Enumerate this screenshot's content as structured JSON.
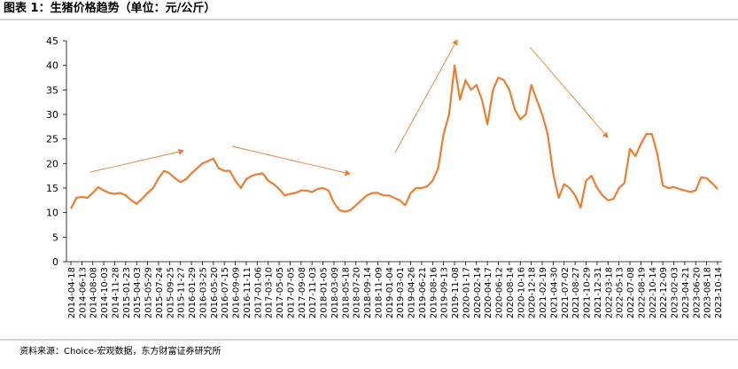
{
  "title": "图表 1：生猪价格趋势（单位：元/公斤）",
  "source": "资料来源：Choice-宏观数据，东方财富证券研究所",
  "chart_data": {
    "type": "line",
    "color": "#ED7D31",
    "categories": [
      "2014-04-18",
      null,
      "2014-06-13",
      null,
      "2014-08-08",
      null,
      "2014-10-03",
      null,
      "2014-11-28",
      null,
      "2015-01-23",
      null,
      "2015-04-03",
      null,
      "2015-05-29",
      null,
      "2015-07-24",
      null,
      "2015-09-25",
      null,
      "2015-11-27",
      null,
      "2016-01-29",
      null,
      "2016-03-25",
      null,
      "2016-05-20",
      null,
      "2016-07-15",
      null,
      "2016-09-09",
      null,
      "2016-11-11",
      null,
      "2017-01-06",
      null,
      "2017-03-10",
      null,
      "2017-05-05",
      null,
      "2017-07-05",
      null,
      "2017-09-08",
      null,
      "2017-11-03",
      null,
      "2018-01-05",
      null,
      "2018-03-09",
      null,
      "2018-05-18",
      null,
      "2018-07-20",
      null,
      "2018-09-14",
      null,
      "2018-11-09",
      null,
      "2019-01-04",
      null,
      "2019-03-01",
      null,
      "2019-04-26",
      null,
      "2019-06-21",
      null,
      "2019-08-16",
      null,
      "2019-09-13",
      null,
      "2019-11-08",
      null,
      "2020-01-17",
      null,
      "2020-02-14",
      null,
      "2020-04-17",
      null,
      "2020-06-12",
      null,
      "2020-08-14",
      null,
      "2020-10-16",
      null,
      "2020-12-18",
      null,
      "2021-02-19",
      null,
      "2021-04-30",
      null,
      "2021-07-02",
      null,
      "2021-08-27",
      null,
      "2021-10-29",
      null,
      "2021-12-31",
      null,
      "2022-03-18",
      null,
      "2022-05-13",
      null,
      "2022-07-08",
      null,
      "2022-08-19",
      null,
      "2022-10-14",
      null,
      "2022-12-09",
      null,
      "2023-02-03",
      null,
      "2023-04-21",
      null,
      "2023-06-20",
      null,
      "2023-08-18",
      null,
      "2023-10-14"
    ],
    "values": [
      10.8,
      13,
      13.2,
      13,
      14,
      15.2,
      14.5,
      14,
      13.8,
      14,
      13.5,
      12.5,
      11.8,
      12.8,
      14,
      15,
      17,
      18.5,
      18,
      17,
      16.2,
      16.8,
      18,
      19,
      20,
      20.5,
      21,
      19,
      18.5,
      18.5,
      16.5,
      15,
      16.8,
      17.5,
      17.8,
      18,
      16.5,
      15.8,
      14.8,
      13.5,
      13.8,
      14,
      14.5,
      14.5,
      14.2,
      14.8,
      15,
      14.5,
      12,
      10.5,
      10.2,
      10.5,
      11.5,
      12.5,
      13.5,
      14,
      14,
      13.5,
      13.5,
      13,
      12.5,
      11.5,
      14,
      15,
      15,
      15.3,
      16.5,
      19,
      26,
      30,
      40,
      33,
      37,
      35,
      36,
      33,
      28,
      35,
      37.5,
      37,
      35,
      31,
      29,
      30,
      36,
      33,
      30,
      26,
      18,
      13,
      15.8,
      15,
      13.5,
      11,
      16.5,
      17.5,
      15,
      13.5,
      12.5,
      12.8,
      15,
      16,
      23,
      21.5,
      24,
      26,
      26,
      22,
      15.5,
      15,
      15.2,
      14.8,
      14.5,
      14.2,
      14.5,
      17.2,
      17,
      16,
      14.8
    ],
    "ylim": [
      0,
      45
    ],
    "yticks": [
      0,
      5,
      10,
      15,
      20,
      25,
      30,
      35,
      40,
      45
    ]
  }
}
